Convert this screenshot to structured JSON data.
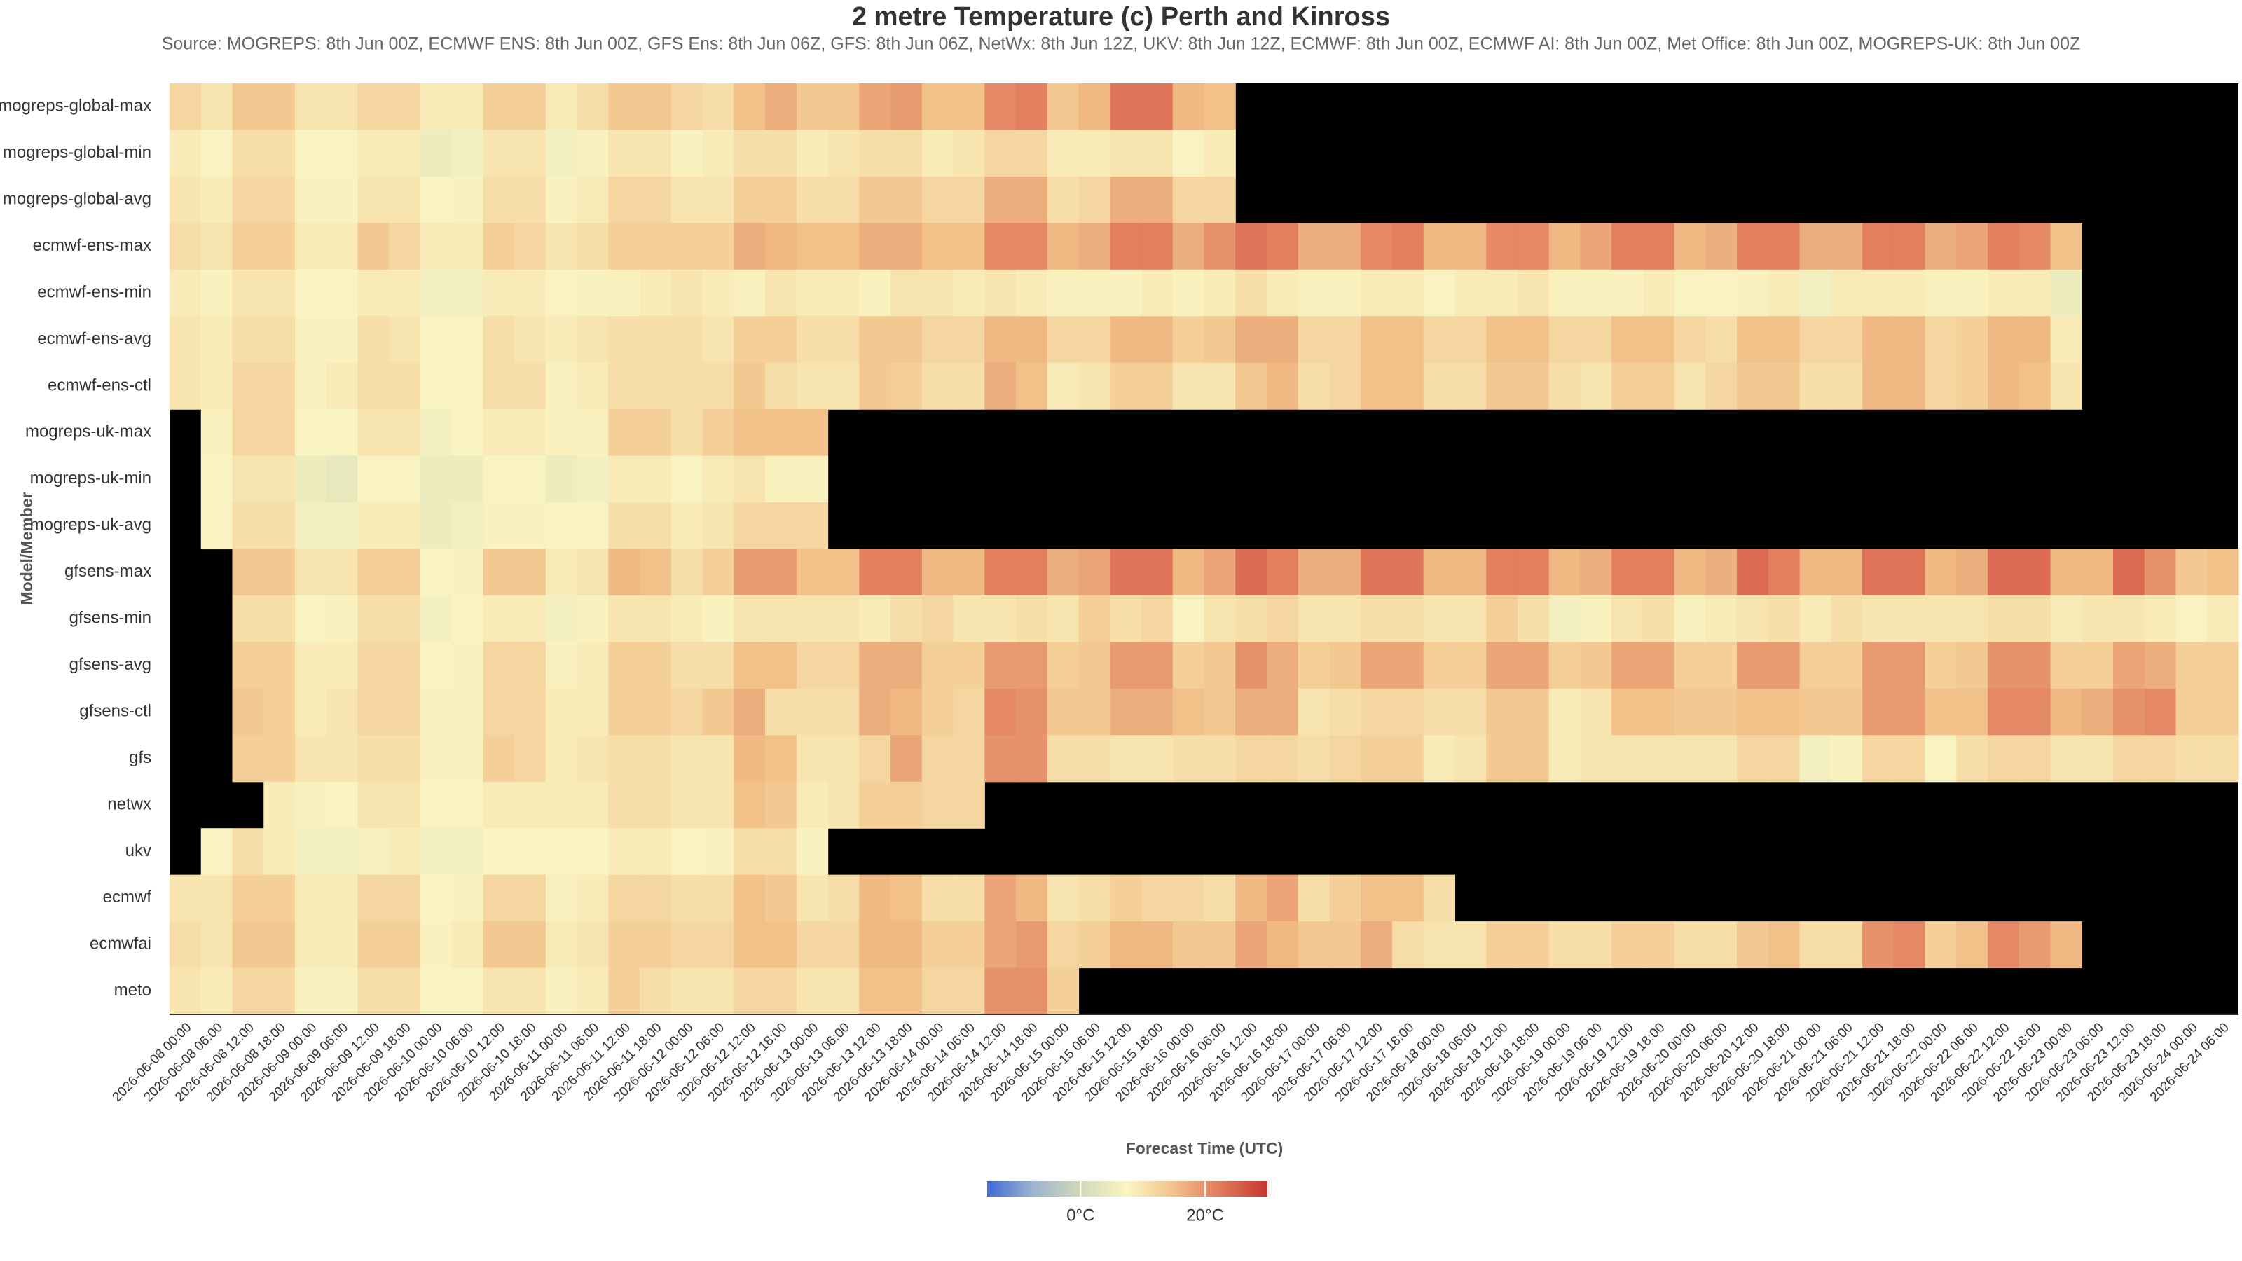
{
  "chart_data": {
    "type": "heatmap",
    "title": "2 metre Temperature (c) Perth and Kinross",
    "subtitle": "Source: MOGREPS: 8th Jun 00Z, ECMWF ENS: 8th Jun 00Z, GFS Ens: 8th Jun 06Z, GFS: 8th Jun 06Z, NetWx: 8th Jun 12Z, UKV: 8th Jun 12Z, ECMWF: 8th Jun 00Z, ECMWF AI: 8th Jun 00Z, Met Office: 8th Jun 00Z, MOGREPS-UK: 8th Jun 00Z",
    "x_label": "Forecast Time (UTC)",
    "y_label": "Model/Member",
    "x": [
      "2026-06-08 00:00",
      "2026-06-08 06:00",
      "2026-06-08 12:00",
      "2026-06-08 18:00",
      "2026-06-09 00:00",
      "2026-06-09 06:00",
      "2026-06-09 12:00",
      "2026-06-09 18:00",
      "2026-06-10 00:00",
      "2026-06-10 06:00",
      "2026-06-10 12:00",
      "2026-06-10 18:00",
      "2026-06-11 00:00",
      "2026-06-11 06:00",
      "2026-06-11 12:00",
      "2026-06-11 18:00",
      "2026-06-12 00:00",
      "2026-06-12 06:00",
      "2026-06-12 12:00",
      "2026-06-12 18:00",
      "2026-06-13 00:00",
      "2026-06-13 06:00",
      "2026-06-13 12:00",
      "2026-06-13 18:00",
      "2026-06-14 00:00",
      "2026-06-14 06:00",
      "2026-06-14 12:00",
      "2026-06-14 18:00",
      "2026-06-15 00:00",
      "2026-06-15 06:00",
      "2026-06-15 12:00",
      "2026-06-15 18:00",
      "2026-06-16 00:00",
      "2026-06-16 06:00",
      "2026-06-16 12:00",
      "2026-06-16 18:00",
      "2026-06-17 00:00",
      "2026-06-17 06:00",
      "2026-06-17 12:00",
      "2026-06-17 18:00",
      "2026-06-18 00:00",
      "2026-06-18 06:00",
      "2026-06-18 12:00",
      "2026-06-18 18:00",
      "2026-06-19 00:00",
      "2026-06-19 06:00",
      "2026-06-19 12:00",
      "2026-06-19 18:00",
      "2026-06-20 00:00",
      "2026-06-20 06:00",
      "2026-06-20 12:00",
      "2026-06-20 18:00",
      "2026-06-21 00:00",
      "2026-06-21 06:00",
      "2026-06-21 12:00",
      "2026-06-21 18:00",
      "2026-06-22 00:00",
      "2026-06-22 06:00",
      "2026-06-22 12:00",
      "2026-06-22 18:00",
      "2026-06-23 00:00",
      "2026-06-23 06:00",
      "2026-06-23 12:00",
      "2026-06-23 18:00",
      "2026-06-24 00:00",
      "2026-06-24 06:00"
    ],
    "y": [
      "mogreps-global-max",
      "mogreps-global-min",
      "mogreps-global-avg",
      "ecmwf-ens-max",
      "ecmwf-ens-min",
      "ecmwf-ens-avg",
      "ecmwf-ens-ctl",
      "mogreps-uk-max",
      "mogreps-uk-min",
      "mogreps-uk-avg",
      "gfsens-max",
      "gfsens-min",
      "gfsens-avg",
      "gfsens-ctl",
      "gfs",
      "netwx",
      "ukv",
      "ecmwf",
      "ecmwfai",
      "meto"
    ],
    "values": [
      [
        12,
        10,
        14,
        14,
        10,
        10,
        12,
        12,
        9,
        9,
        13,
        13,
        9,
        11,
        14,
        14,
        12,
        11,
        15,
        17,
        14,
        14,
        18,
        19,
        15,
        15,
        21,
        22,
        14,
        16,
        23,
        23,
        16,
        15,
        null,
        null,
        null,
        null,
        null,
        null,
        null,
        null,
        null,
        null,
        null,
        null,
        null,
        null,
        null,
        null,
        null,
        null,
        null,
        null,
        null,
        null,
        null,
        null,
        null,
        null,
        null,
        null,
        null,
        null,
        null,
        null
      ],
      [
        9,
        7,
        11,
        11,
        7,
        7,
        9,
        9,
        5,
        6,
        10,
        10,
        6,
        8,
        10,
        10,
        8,
        9,
        11,
        11,
        9,
        10,
        11,
        11,
        9,
        10,
        12,
        12,
        9,
        9,
        10,
        10,
        7,
        9,
        null,
        null,
        null,
        null,
        null,
        null,
        null,
        null,
        null,
        null,
        null,
        null,
        null,
        null,
        null,
        null,
        null,
        null,
        null,
        null,
        null,
        null,
        null,
        null,
        null,
        null,
        null,
        null,
        null,
        null,
        null,
        null
      ],
      [
        10,
        9,
        12,
        12,
        8,
        8,
        10,
        10,
        7,
        8,
        11,
        11,
        8,
        9,
        12,
        12,
        10,
        10,
        13,
        13,
        11,
        11,
        14,
        14,
        12,
        12,
        17,
        17,
        11,
        12,
        17,
        17,
        12,
        12,
        null,
        null,
        null,
        null,
        null,
        null,
        null,
        null,
        null,
        null,
        null,
        null,
        null,
        null,
        null,
        null,
        null,
        null,
        null,
        null,
        null,
        null,
        null,
        null,
        null,
        null,
        null,
        null,
        null,
        null,
        null,
        null
      ],
      [
        11,
        10,
        13,
        13,
        9,
        9,
        14,
        12,
        9,
        9,
        13,
        12,
        10,
        11,
        13,
        13,
        13,
        13,
        17,
        16,
        15,
        15,
        17,
        17,
        15,
        15,
        21,
        21,
        16,
        17,
        22,
        22,
        17,
        20,
        23,
        22,
        17,
        17,
        21,
        22,
        16,
        16,
        21,
        21,
        16,
        18,
        22,
        22,
        16,
        17,
        22,
        22,
        17,
        17,
        22,
        22,
        17,
        18,
        22,
        21,
        15,
        null,
        null,
        null,
        null,
        null
      ],
      [
        9,
        8,
        10,
        10,
        7,
        7,
        9,
        9,
        6,
        6,
        9,
        9,
        7,
        8,
        8,
        9,
        10,
        9,
        8,
        10,
        9,
        9,
        8,
        10,
        10,
        9,
        10,
        9,
        8,
        8,
        8,
        9,
        8,
        9,
        11,
        9,
        8,
        8,
        9,
        9,
        7,
        9,
        9,
        10,
        8,
        8,
        8,
        9,
        7,
        7,
        8,
        9,
        6,
        9,
        9,
        9,
        8,
        8,
        9,
        9,
        5,
        null,
        null,
        null,
        null,
        null
      ],
      [
        10,
        9,
        11,
        11,
        8,
        8,
        11,
        10,
        7,
        7,
        11,
        10,
        9,
        10,
        11,
        11,
        11,
        10,
        13,
        13,
        11,
        11,
        14,
        14,
        12,
        12,
        16,
        16,
        12,
        12,
        16,
        16,
        13,
        14,
        17,
        17,
        12,
        12,
        15,
        15,
        12,
        12,
        15,
        15,
        12,
        12,
        15,
        15,
        12,
        11,
        15,
        15,
        12,
        12,
        16,
        16,
        12,
        13,
        16,
        16,
        9,
        null,
        null,
        null,
        null,
        null
      ],
      [
        10,
        9,
        12,
        12,
        8,
        9,
        11,
        11,
        7,
        7,
        11,
        11,
        8,
        9,
        11,
        11,
        11,
        11,
        14,
        11,
        10,
        10,
        14,
        13,
        11,
        11,
        17,
        15,
        9,
        10,
        13,
        13,
        10,
        10,
        14,
        16,
        11,
        12,
        15,
        15,
        11,
        11,
        14,
        14,
        11,
        10,
        13,
        13,
        10,
        12,
        14,
        14,
        11,
        11,
        16,
        16,
        12,
        13,
        16,
        15,
        10,
        null,
        null,
        null,
        null,
        null
      ],
      [
        null,
        8,
        12,
        12,
        7,
        7,
        10,
        10,
        6,
        7,
        9,
        9,
        8,
        8,
        13,
        13,
        11,
        13,
        15,
        15,
        15,
        null,
        null,
        null,
        null,
        null,
        null,
        null,
        null,
        null,
        null,
        null,
        null,
        null,
        null,
        null,
        null,
        null,
        null,
        null,
        null,
        null,
        null,
        null,
        null,
        null,
        null,
        null,
        null,
        null,
        null,
        null,
        null,
        null,
        null,
        null,
        null,
        null,
        null,
        null,
        null,
        null,
        null,
        null,
        null,
        null
      ],
      [
        null,
        7,
        10,
        10,
        5,
        4,
        7,
        7,
        5,
        5,
        7,
        7,
        5,
        6,
        9,
        9,
        7,
        9,
        10,
        8,
        8,
        null,
        null,
        null,
        null,
        null,
        null,
        null,
        null,
        null,
        null,
        null,
        null,
        null,
        null,
        null,
        null,
        null,
        null,
        null,
        null,
        null,
        null,
        null,
        null,
        null,
        null,
        null,
        null,
        null,
        null,
        null,
        null,
        null,
        null,
        null,
        null,
        null,
        null,
        null,
        null,
        null,
        null,
        null,
        null,
        null
      ],
      [
        null,
        7,
        11,
        11,
        6,
        6,
        9,
        9,
        5,
        6,
        8,
        8,
        7,
        7,
        11,
        11,
        9,
        10,
        12,
        12,
        12,
        null,
        null,
        null,
        null,
        null,
        null,
        null,
        null,
        null,
        null,
        null,
        null,
        null,
        null,
        null,
        null,
        null,
        null,
        null,
        null,
        null,
        null,
        null,
        null,
        null,
        null,
        null,
        null,
        null,
        null,
        null,
        null,
        null,
        null,
        null,
        null,
        null,
        null,
        null,
        null,
        null,
        null,
        null,
        null,
        null
      ],
      [
        null,
        null,
        14,
        14,
        10,
        10,
        13,
        13,
        7,
        8,
        14,
        14,
        9,
        10,
        16,
        15,
        11,
        13,
        19,
        19,
        15,
        15,
        22,
        22,
        16,
        16,
        22,
        22,
        17,
        18,
        23,
        23,
        16,
        18,
        24,
        22,
        17,
        17,
        23,
        23,
        16,
        16,
        22,
        22,
        16,
        17,
        22,
        22,
        16,
        17,
        24,
        22,
        16,
        16,
        23,
        23,
        16,
        17,
        24,
        24,
        16,
        16,
        24,
        20,
        14,
        15
      ],
      [
        null,
        null,
        11,
        11,
        7,
        8,
        11,
        11,
        6,
        7,
        9,
        9,
        6,
        8,
        10,
        10,
        9,
        8,
        10,
        10,
        10,
        10,
        9,
        11,
        12,
        10,
        10,
        11,
        10,
        13,
        11,
        12,
        7,
        10,
        11,
        12,
        10,
        10,
        11,
        11,
        10,
        10,
        13,
        11,
        6,
        8,
        10,
        11,
        8,
        9,
        10,
        11,
        9,
        11,
        10,
        10,
        10,
        10,
        11,
        11,
        9,
        10,
        10,
        9,
        7,
        9
      ],
      [
        null,
        null,
        13,
        13,
        9,
        9,
        12,
        12,
        7,
        8,
        12,
        12,
        8,
        9,
        13,
        13,
        11,
        11,
        15,
        15,
        12,
        12,
        17,
        17,
        13,
        13,
        19,
        19,
        13,
        14,
        19,
        19,
        13,
        14,
        20,
        17,
        13,
        14,
        18,
        18,
        13,
        13,
        18,
        18,
        13,
        14,
        18,
        18,
        13,
        13,
        19,
        19,
        13,
        13,
        19,
        19,
        13,
        14,
        20,
        20,
        13,
        13,
        18,
        17,
        13,
        13
      ],
      [
        null,
        null,
        14,
        13,
        9,
        10,
        12,
        12,
        8,
        8,
        12,
        12,
        9,
        9,
        13,
        13,
        12,
        14,
        17,
        11,
        11,
        11,
        17,
        16,
        13,
        12,
        21,
        20,
        14,
        14,
        17,
        17,
        15,
        14,
        17,
        17,
        10,
        11,
        12,
        12,
        11,
        11,
        14,
        14,
        9,
        10,
        15,
        15,
        14,
        14,
        15,
        15,
        14,
        14,
        19,
        19,
        15,
        15,
        21,
        21,
        16,
        17,
        20,
        21,
        13,
        13
      ],
      [
        null,
        null,
        13,
        13,
        10,
        10,
        11,
        11,
        8,
        8,
        13,
        12,
        9,
        10,
        11,
        11,
        10,
        10,
        16,
        15,
        10,
        10,
        12,
        18,
        12,
        12,
        20,
        20,
        11,
        11,
        10,
        10,
        11,
        11,
        12,
        12,
        11,
        12,
        13,
        13,
        9,
        10,
        14,
        14,
        9,
        10,
        10,
        10,
        10,
        10,
        12,
        12,
        6,
        8,
        12,
        12,
        7,
        11,
        12,
        12,
        10,
        10,
        12,
        12,
        11,
        11
      ],
      [
        null,
        null,
        null,
        9,
        8,
        7,
        10,
        10,
        7,
        7,
        9,
        9,
        9,
        9,
        11,
        11,
        10,
        10,
        15,
        14,
        9,
        10,
        13,
        13,
        12,
        12,
        null,
        null,
        null,
        null,
        null,
        null,
        null,
        null,
        null,
        null,
        null,
        null,
        null,
        null,
        null,
        null,
        null,
        null,
        null,
        null,
        null,
        null,
        null,
        null,
        null,
        null,
        null,
        null,
        null,
        null,
        null,
        null,
        null,
        null,
        null,
        null,
        null,
        null,
        null,
        null
      ],
      [
        null,
        7,
        11,
        9,
        6,
        6,
        8,
        9,
        6,
        6,
        7,
        7,
        7,
        7,
        9,
        9,
        7,
        8,
        11,
        11,
        8,
        null,
        null,
        null,
        null,
        null,
        null,
        null,
        null,
        null,
        null,
        null,
        null,
        null,
        null,
        null,
        null,
        null,
        null,
        null,
        null,
        null,
        null,
        null,
        null,
        null,
        null,
        null,
        null,
        null,
        null,
        null,
        null,
        null,
        null,
        null,
        null,
        null,
        null,
        null,
        null,
        null,
        null,
        null,
        null,
        null
      ],
      [
        10,
        10,
        13,
        13,
        9,
        9,
        12,
        12,
        7,
        8,
        12,
        12,
        8,
        9,
        12,
        12,
        11,
        11,
        15,
        14,
        10,
        11,
        16,
        15,
        11,
        11,
        18,
        16,
        10,
        11,
        13,
        12,
        12,
        11,
        16,
        18,
        11,
        13,
        15,
        15,
        11,
        null,
        null,
        null,
        null,
        null,
        null,
        null,
        null,
        null,
        null,
        null,
        null,
        null,
        null,
        null,
        null,
        null,
        null,
        null,
        null,
        null,
        null,
        null,
        null,
        null
      ],
      [
        11,
        10,
        14,
        14,
        9,
        9,
        13,
        13,
        8,
        9,
        14,
        14,
        9,
        10,
        13,
        13,
        12,
        12,
        15,
        15,
        12,
        12,
        16,
        16,
        13,
        13,
        18,
        19,
        12,
        13,
        16,
        16,
        14,
        14,
        18,
        16,
        14,
        14,
        17,
        11,
        10,
        10,
        13,
        13,
        11,
        11,
        13,
        13,
        11,
        11,
        14,
        15,
        11,
        11,
        20,
        21,
        13,
        15,
        21,
        19,
        16,
        null,
        null,
        null,
        null,
        null
      ],
      [
        10,
        9,
        12,
        12,
        8,
        8,
        11,
        11,
        7,
        7,
        10,
        10,
        8,
        9,
        13,
        11,
        10,
        10,
        12,
        12,
        10,
        10,
        15,
        15,
        12,
        12,
        20,
        20,
        13,
        null,
        null,
        null,
        null,
        null,
        null,
        null,
        null,
        null,
        null,
        null,
        null,
        null,
        null,
        null,
        null,
        null,
        null,
        null,
        null,
        null,
        null,
        null,
        null,
        null,
        null,
        null,
        null,
        null,
        null,
        null,
        null,
        null,
        null,
        null,
        null,
        null
      ]
    ],
    "clim": [
      -15,
      30
    ],
    "cticks": [
      {
        "value": 0,
        "label": "0°C"
      },
      {
        "value": 20,
        "label": "20°C"
      }
    ],
    "colors": [
      "#3d6bd6",
      "#9fb4d0",
      "#d2d9b8",
      "#fbf5c2",
      "#f2c189",
      "#e07a5c",
      "#c7352d"
    ],
    "missing_color": "#000000"
  }
}
